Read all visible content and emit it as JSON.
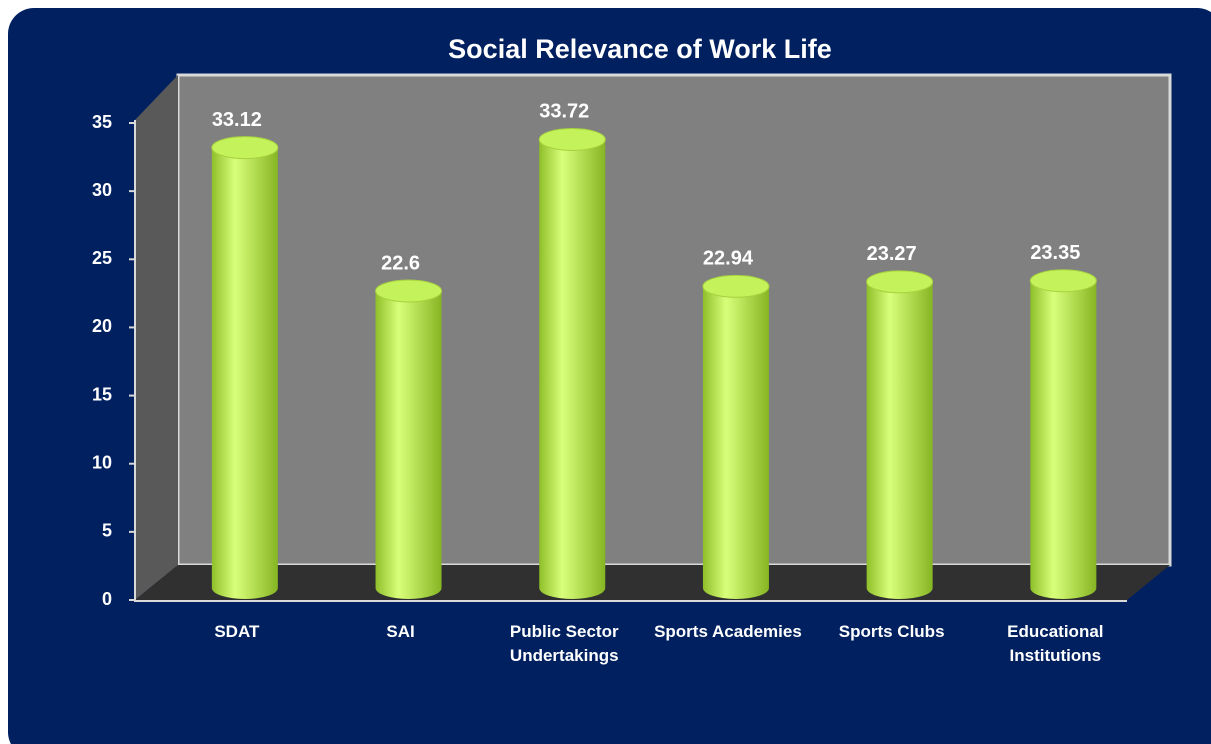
{
  "chart_data": {
    "type": "bar",
    "title": "Social Relevance of Work Life",
    "categories": [
      "SDAT",
      "SAI",
      "Public Sector Undertakings",
      "Sports Academies",
      "Sports Clubs",
      "Educational Institutions"
    ],
    "values": [
      33.12,
      22.6,
      33.72,
      22.94,
      23.27,
      23.35
    ],
    "color": "#c4f25a",
    "ylim": [
      0,
      35
    ],
    "yticks": [
      0,
      5,
      10,
      15,
      20,
      25,
      30,
      35
    ]
  }
}
